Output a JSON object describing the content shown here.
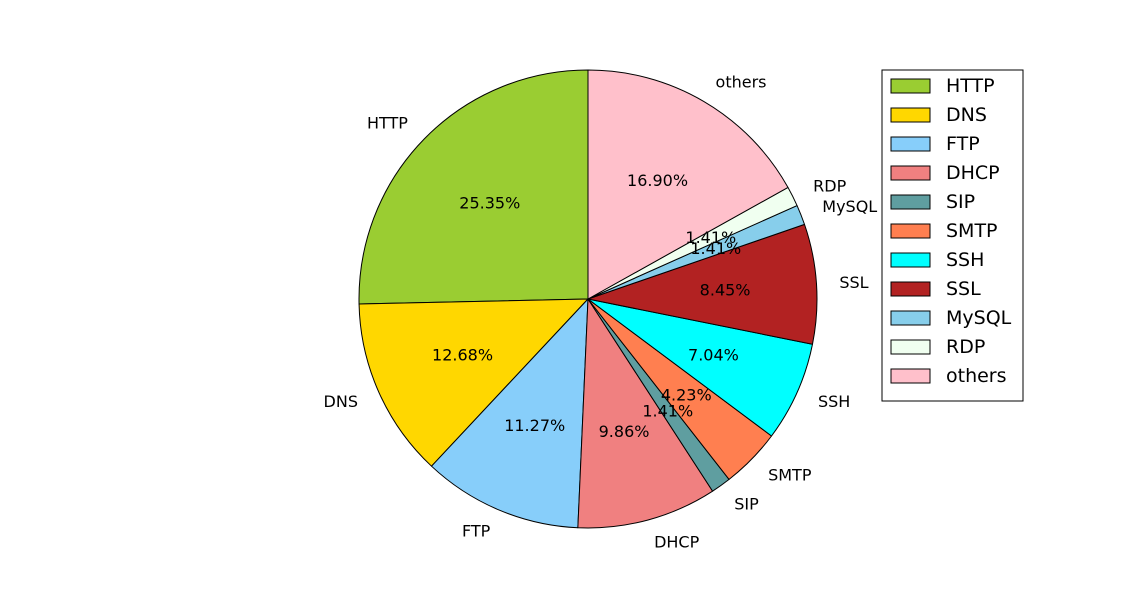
{
  "chart_data": {
    "type": "pie",
    "title": "",
    "start_angle_deg": 90,
    "direction": "counterclockwise",
    "legend_position": "top-right",
    "slices": [
      {
        "label": "HTTP",
        "value": 25.35,
        "pct_label": "25.35%",
        "color": "#9ACD32"
      },
      {
        "label": "DNS",
        "value": 12.68,
        "pct_label": "12.68%",
        "color": "#FFD700"
      },
      {
        "label": "FTP",
        "value": 11.27,
        "pct_label": "11.27%",
        "color": "#87CEFA"
      },
      {
        "label": "DHCP",
        "value": 9.86,
        "pct_label": "9.86%",
        "color": "#F08080"
      },
      {
        "label": "SIP",
        "value": 1.41,
        "pct_label": "1.41%",
        "color": "#5F9EA0"
      },
      {
        "label": "SMTP",
        "value": 4.23,
        "pct_label": "4.23%",
        "color": "#FF7F50"
      },
      {
        "label": "SSH",
        "value": 7.04,
        "pct_label": "7.04%",
        "color": "#00FFFF"
      },
      {
        "label": "SSL",
        "value": 8.45,
        "pct_label": "8.45%",
        "color": "#B22222"
      },
      {
        "label": "MySQL",
        "value": 1.41,
        "pct_label": "1.41%",
        "color": "#87CEEB"
      },
      {
        "label": "RDP",
        "value": 1.41,
        "pct_label": "1.41%",
        "color": "#F0FFF0"
      },
      {
        "label": "others",
        "value": 16.9,
        "pct_label": "16.90%",
        "color": "#FFC0CB"
      }
    ],
    "legend": [
      "HTTP",
      "DNS",
      "FTP",
      "DHCP",
      "SIP",
      "SMTP",
      "SSH",
      "SSL",
      "MySQL",
      "RDP",
      "others"
    ]
  }
}
